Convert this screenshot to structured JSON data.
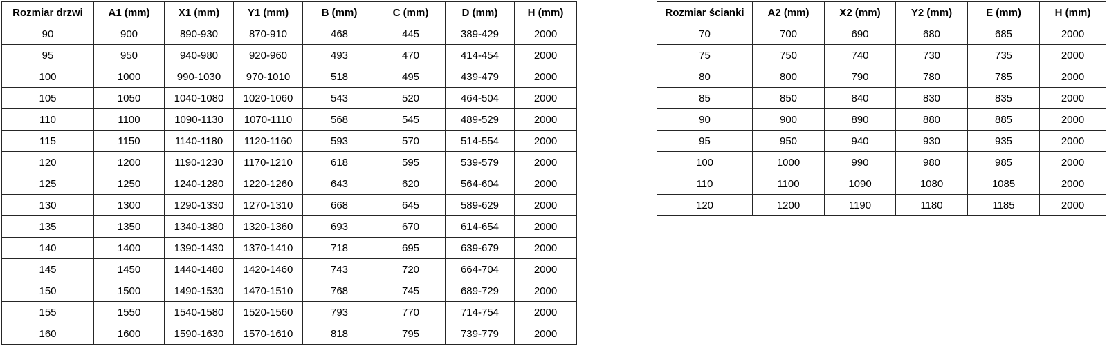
{
  "colors": {
    "background": "#ffffff",
    "border": "#262626",
    "text": "#000000"
  },
  "door_table": {
    "name": "door-sizes-table",
    "headers": [
      "Rozmiar drzwi",
      "A1 (mm)",
      "X1 (mm)",
      "Y1 (mm)",
      "B (mm)",
      "C (mm)",
      "D (mm)",
      "H (mm)"
    ],
    "rows": [
      [
        "90",
        "900",
        "890-930",
        "870-910",
        "468",
        "445",
        "389-429",
        "2000"
      ],
      [
        "95",
        "950",
        "940-980",
        "920-960",
        "493",
        "470",
        "414-454",
        "2000"
      ],
      [
        "100",
        "1000",
        "990-1030",
        "970-1010",
        "518",
        "495",
        "439-479",
        "2000"
      ],
      [
        "105",
        "1050",
        "1040-1080",
        "1020-1060",
        "543",
        "520",
        "464-504",
        "2000"
      ],
      [
        "110",
        "1100",
        "1090-1130",
        "1070-1110",
        "568",
        "545",
        "489-529",
        "2000"
      ],
      [
        "115",
        "1150",
        "1140-1180",
        "1120-1160",
        "593",
        "570",
        "514-554",
        "2000"
      ],
      [
        "120",
        "1200",
        "1190-1230",
        "1170-1210",
        "618",
        "595",
        "539-579",
        "2000"
      ],
      [
        "125",
        "1250",
        "1240-1280",
        "1220-1260",
        "643",
        "620",
        "564-604",
        "2000"
      ],
      [
        "130",
        "1300",
        "1290-1330",
        "1270-1310",
        "668",
        "645",
        "589-629",
        "2000"
      ],
      [
        "135",
        "1350",
        "1340-1380",
        "1320-1360",
        "693",
        "670",
        "614-654",
        "2000"
      ],
      [
        "140",
        "1400",
        "1390-1430",
        "1370-1410",
        "718",
        "695",
        "639-679",
        "2000"
      ],
      [
        "145",
        "1450",
        "1440-1480",
        "1420-1460",
        "743",
        "720",
        "664-704",
        "2000"
      ],
      [
        "150",
        "1500",
        "1490-1530",
        "1470-1510",
        "768",
        "745",
        "689-729",
        "2000"
      ],
      [
        "155",
        "1550",
        "1540-1580",
        "1520-1560",
        "793",
        "770",
        "714-754",
        "2000"
      ],
      [
        "160",
        "1600",
        "1590-1630",
        "1570-1610",
        "818",
        "795",
        "739-779",
        "2000"
      ]
    ]
  },
  "wall_table": {
    "name": "wall-panel-sizes-table",
    "headers": [
      "Rozmiar ścianki",
      "A2 (mm)",
      "X2 (mm)",
      "Y2 (mm)",
      "E (mm)",
      "H (mm)"
    ],
    "rows": [
      [
        "70",
        "700",
        "690",
        "680",
        "685",
        "2000"
      ],
      [
        "75",
        "750",
        "740",
        "730",
        "735",
        "2000"
      ],
      [
        "80",
        "800",
        "790",
        "780",
        "785",
        "2000"
      ],
      [
        "85",
        "850",
        "840",
        "830",
        "835",
        "2000"
      ],
      [
        "90",
        "900",
        "890",
        "880",
        "885",
        "2000"
      ],
      [
        "95",
        "950",
        "940",
        "930",
        "935",
        "2000"
      ],
      [
        "100",
        "1000",
        "990",
        "980",
        "985",
        "2000"
      ],
      [
        "110",
        "1100",
        "1090",
        "1080",
        "1085",
        "2000"
      ],
      [
        "120",
        "1200",
        "1190",
        "1180",
        "1185",
        "2000"
      ]
    ]
  }
}
